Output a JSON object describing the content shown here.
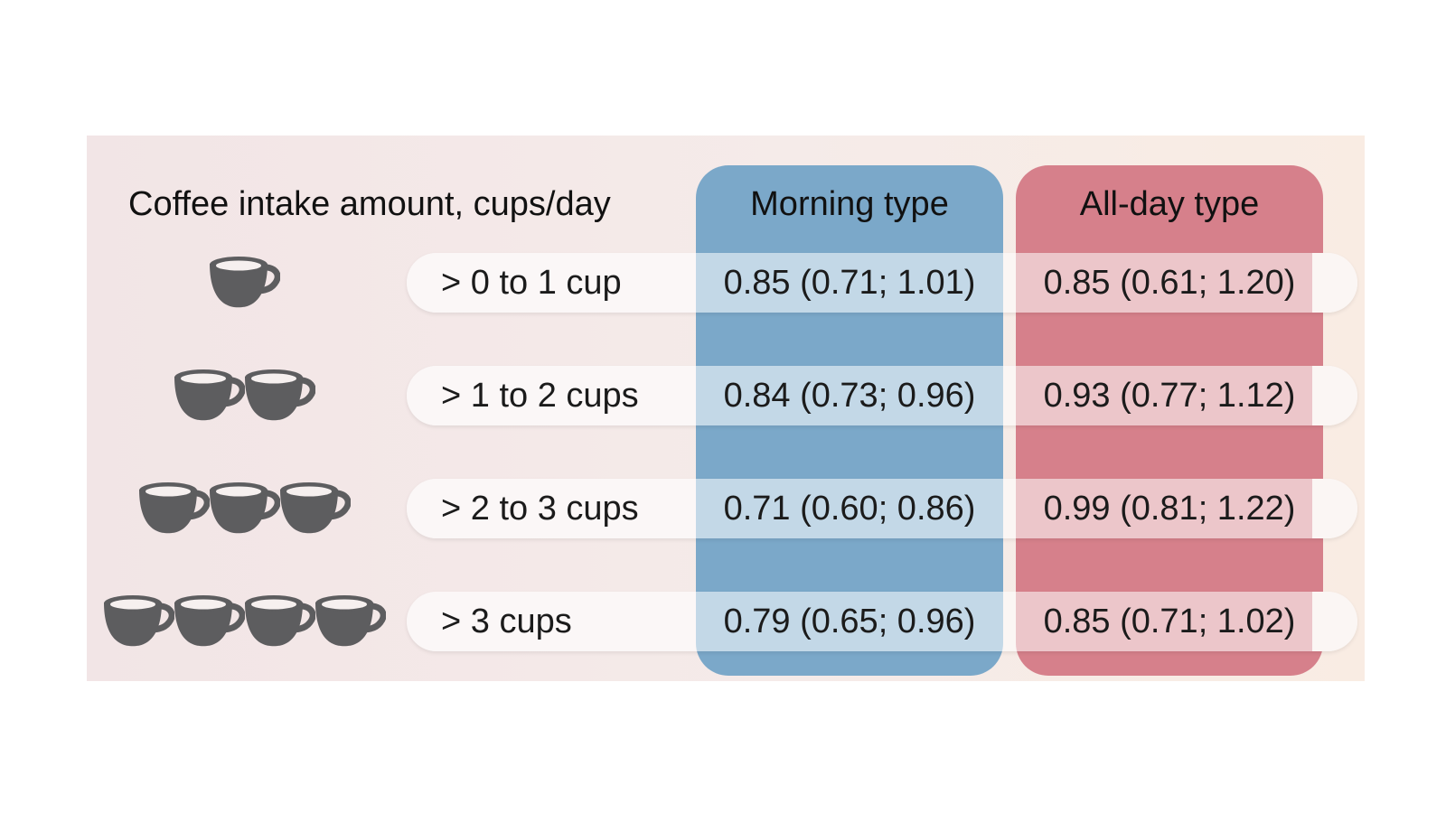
{
  "header": {
    "amount_label": "Coffee intake amount, cups/day",
    "morning_label": "Morning type",
    "allday_label": "All-day type"
  },
  "colors": {
    "morning_column": "#7ba8c9",
    "allday_column": "#d6808b",
    "cup_icon": "#5d5d5f",
    "panel_background": "#f3e8e7"
  },
  "rows": [
    {
      "cup_count": 1,
      "cup_icon": "coffee-cup-icon",
      "label": "> 0 to 1 cup",
      "morning": "0.85 (0.71; 1.01)",
      "allday": "0.85 (0.61; 1.20)"
    },
    {
      "cup_count": 2,
      "cup_icon": "coffee-cup-icon",
      "label": "> 1 to 2 cups",
      "morning": "0.84 (0.73; 0.96)",
      "allday": "0.93 (0.77; 1.12)"
    },
    {
      "cup_count": 3,
      "cup_icon": "coffee-cup-icon",
      "label": "> 2 to 3 cups",
      "morning": "0.71 (0.60; 0.86)",
      "allday": "0.99 (0.81; 1.22)"
    },
    {
      "cup_count": 4,
      "cup_icon": "coffee-cup-icon",
      "label": "> 3 cups",
      "morning": "0.79 (0.65; 0.96)",
      "allday": "0.85 (0.71; 1.02)"
    }
  ]
}
